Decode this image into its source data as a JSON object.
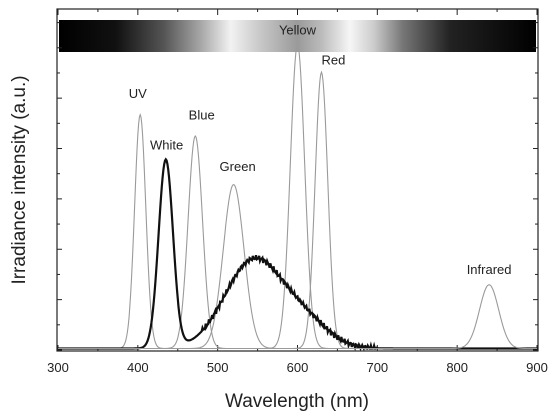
{
  "chart_data": {
    "type": "line",
    "xlabel": "Wavelength (nm)",
    "ylabel": "Irradiance intensity (a.u.)",
    "xlim": [
      300,
      900
    ],
    "ylim": [
      0,
      1.12
    ],
    "x_ticks": [
      "300",
      "400",
      "500",
      "600",
      "700",
      "800",
      "900"
    ],
    "grid": false,
    "series": [
      {
        "name": "UV",
        "color": "#9a9a9a",
        "peaks": [
          {
            "center": 403,
            "sigma": 7,
            "amp": 0.77
          }
        ]
      },
      {
        "name": "Blue",
        "color": "#9a9a9a",
        "peaks": [
          {
            "center": 472,
            "sigma": 9,
            "amp": 0.7
          }
        ]
      },
      {
        "name": "Green",
        "color": "#9a9a9a",
        "peaks": [
          {
            "center": 520,
            "sigma": 13,
            "amp": 0.54
          }
        ]
      },
      {
        "name": "Yellow",
        "color": "#9a9a9a",
        "peaks": [
          {
            "center": 600,
            "sigma": 9,
            "amp": 1.0
          }
        ]
      },
      {
        "name": "Red",
        "color": "#9a9a9a",
        "peaks": [
          {
            "center": 630,
            "sigma": 8,
            "amp": 0.91
          }
        ]
      },
      {
        "name": "White",
        "color": "#111111",
        "peaks": [
          {
            "center": 435,
            "sigma": 9,
            "amp": 0.62
          },
          {
            "center": 545,
            "sigma": 36,
            "amp": 0.29
          },
          {
            "center": 610,
            "sigma": 30,
            "amp": 0.08
          }
        ]
      },
      {
        "name": "Infrared",
        "color": "#9a9a9a",
        "peaks": [
          {
            "center": 840,
            "sigma": 12,
            "amp": 0.21
          }
        ]
      }
    ],
    "labels": [
      {
        "text": "UV",
        "x": 400,
        "y": 0.83
      },
      {
        "text": "Blue",
        "x": 480,
        "y": 0.76
      },
      {
        "text": "Green",
        "x": 525,
        "y": 0.59
      },
      {
        "text": "White",
        "x": 436,
        "y": 0.66
      },
      {
        "text": "Yellow",
        "x": 600,
        "y": 1.04
      },
      {
        "text": "Red",
        "x": 645,
        "y": 0.94
      },
      {
        "text": "Infrared",
        "x": 840,
        "y": 0.25
      }
    ]
  }
}
